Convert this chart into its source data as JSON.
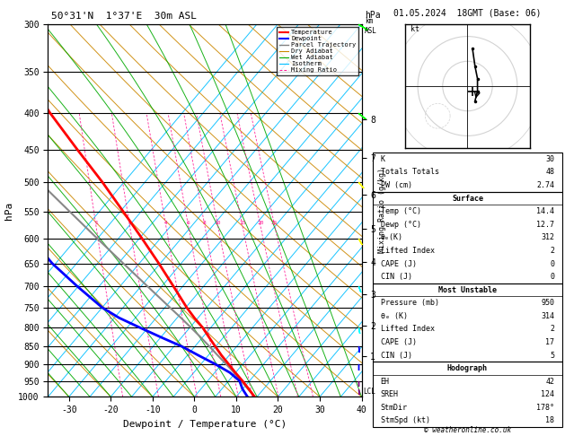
{
  "title_left": "50°31'N  1°37'E  30m ASL",
  "title_right": "01.05.2024  18GMT (Base: 06)",
  "xlabel": "Dewpoint / Temperature (°C)",
  "ylabel_left": "hPa",
  "pressure_ticks": [
    300,
    350,
    400,
    450,
    500,
    550,
    600,
    650,
    700,
    750,
    800,
    850,
    900,
    950,
    1000
  ],
  "temp_min": -35,
  "temp_max": 40,
  "temp_ticks": [
    -30,
    -20,
    -10,
    0,
    10,
    20,
    30,
    40
  ],
  "isotherm_color": "#00BFFF",
  "dry_adiabat_color": "#CC8800",
  "wet_adiabat_color": "#00AA00",
  "mixing_ratio_color": "#FF1493",
  "temp_profile_color": "#FF0000",
  "dewp_profile_color": "#0000FF",
  "parcel_color": "#888888",
  "km_ticks": [
    1,
    2,
    3,
    4,
    5,
    6,
    7,
    8
  ],
  "km_pressures": [
    877,
    795,
    718,
    647,
    581,
    520,
    462,
    408
  ],
  "mixing_ratio_vals": [
    1,
    2,
    4,
    6,
    8,
    10,
    15,
    20,
    25
  ],
  "mixing_ratio_label_pressure": 575,
  "lcl_pressure": 983,
  "temp_data_pressure": [
    1000,
    975,
    950,
    925,
    900,
    875,
    850,
    825,
    800,
    775,
    750,
    700,
    650,
    600,
    550,
    500,
    450,
    400,
    350,
    300
  ],
  "temp_data_temp": [
    14.4,
    13.0,
    11.5,
    9.8,
    8.2,
    6.5,
    5.0,
    3.5,
    2.0,
    0.0,
    -1.8,
    -5.0,
    -8.5,
    -12.5,
    -17.0,
    -22.0,
    -28.0,
    -34.5,
    -41.0,
    -47.0
  ],
  "dewp_data_pressure": [
    1000,
    975,
    950,
    925,
    900,
    875,
    850,
    825,
    800,
    775,
    750,
    700,
    650,
    600,
    550,
    500,
    450,
    400,
    350,
    300
  ],
  "dewp_data_temp": [
    12.7,
    11.5,
    10.8,
    8.5,
    5.0,
    1.0,
    -3.0,
    -8.0,
    -13.0,
    -18.0,
    -22.0,
    -28.0,
    -34.0,
    -39.0,
    -44.0,
    -47.0,
    -52.0,
    -55.0,
    -58.0,
    -60.0
  ],
  "parcel_data_pressure": [
    1000,
    975,
    950,
    925,
    900,
    875,
    850,
    825,
    800,
    775,
    750,
    700,
    650,
    600,
    550,
    500,
    450,
    400,
    350,
    300
  ],
  "parcel_data_temp": [
    14.4,
    12.8,
    11.2,
    9.5,
    7.6,
    5.6,
    3.6,
    1.5,
    -0.8,
    -3.2,
    -5.8,
    -11.2,
    -17.0,
    -23.2,
    -29.8,
    -37.0,
    -44.5,
    -52.0,
    -59.5,
    -67.0
  ],
  "wind_pressures": [
    975,
    950,
    900,
    850,
    800,
    700,
    600,
    500,
    400,
    300
  ],
  "wind_dirs": [
    175,
    180,
    180,
    175,
    170,
    160,
    150,
    140,
    130,
    120
  ],
  "wind_speeds": [
    8,
    10,
    10,
    12,
    14,
    15,
    12,
    10,
    8,
    6
  ],
  "wind_barb_colors": [
    "purple",
    "purple",
    "blue",
    "blue",
    "cyan",
    "cyan",
    "yellow",
    "yellow",
    "lime",
    "lime"
  ],
  "stats_k": 30,
  "stats_tt": 48,
  "stats_pw": 2.74,
  "stats_surf_temp": 14.4,
  "stats_surf_dewp": 12.7,
  "stats_surf_thetae": 312,
  "stats_surf_li": 2,
  "stats_surf_cape": 0,
  "stats_surf_cin": 0,
  "stats_mu_pressure": 950,
  "stats_mu_thetae": 314,
  "stats_mu_li": 2,
  "stats_mu_cape": 17,
  "stats_mu_cin": 5,
  "stats_hodo_eh": 42,
  "stats_hodo_sreh": 124,
  "stats_hodo_stmdir": "178°",
  "stats_hodo_stmspd": 18,
  "copyright": "© weatheronline.co.uk"
}
